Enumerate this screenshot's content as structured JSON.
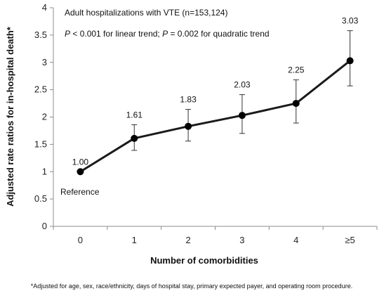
{
  "chart_data": {
    "type": "line",
    "categories": [
      "0",
      "1",
      "2",
      "3",
      "4",
      "≥5"
    ],
    "values": [
      1.0,
      1.61,
      1.83,
      2.03,
      2.25,
      3.03
    ],
    "ci_lower": [
      1.0,
      1.39,
      1.56,
      1.7,
      1.89,
      2.57
    ],
    "ci_upper": [
      1.0,
      1.86,
      2.14,
      2.41,
      2.68,
      3.58
    ],
    "data_labels": [
      "1.00",
      "1.61",
      "1.83",
      "2.03",
      "2.25",
      "3.03"
    ],
    "ylim": [
      0,
      4
    ],
    "yticks": [
      0,
      0.5,
      1,
      1.5,
      2,
      2.5,
      3,
      3.5,
      4
    ],
    "ytick_labels": [
      "0",
      "0.5",
      "1",
      "1.5",
      "2",
      "2.5",
      "3",
      "3.5",
      "4"
    ],
    "xlabel": "Number of comorbidities",
    "ylabel": "Adjusted rate ratios for in-hospital death*",
    "grid": false,
    "line_color": "#1a1a1a",
    "marker_color": "#000000"
  },
  "annotations": {
    "cohort": "Adult hospitalizations  with VTE (n=153,124)",
    "trend_p1_symbol": "P",
    "trend_p1_rest": " < 0.001 for linear trend; ",
    "trend_p2_symbol": "P",
    "trend_p2_rest": " = 0.002 for quadratic trend",
    "reference": "Reference"
  },
  "footnote": "*Adjusted for age, sex, race/ethnicity, days of hospital stay, primary expected payer, and operating room procedure."
}
